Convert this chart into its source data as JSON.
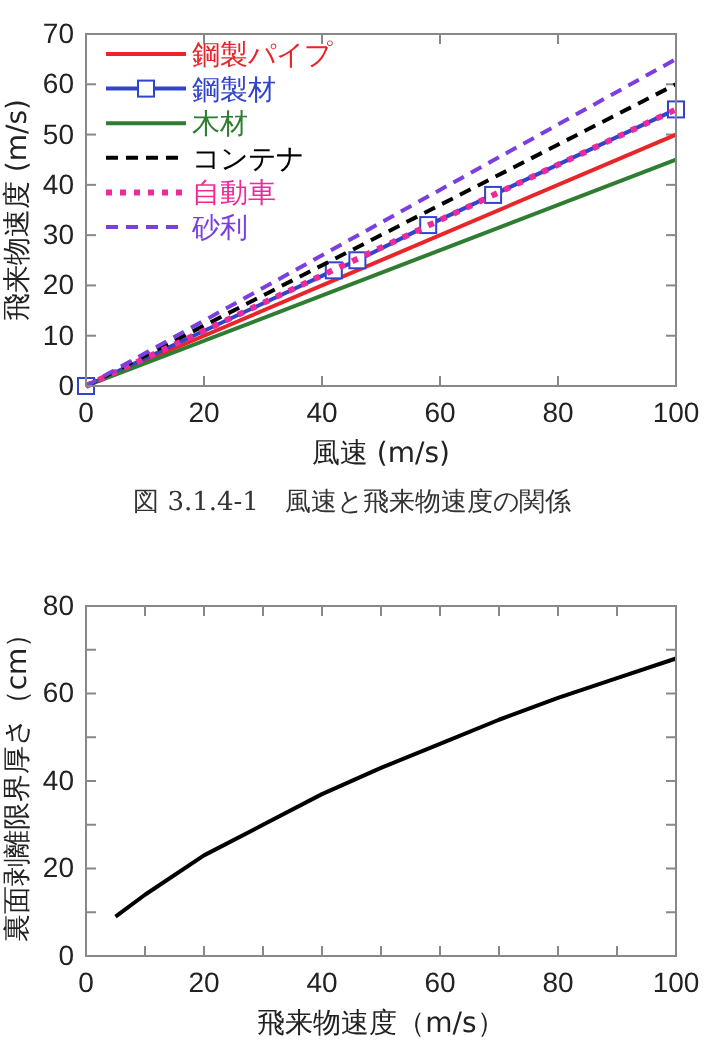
{
  "chart_data": [
    {
      "type": "line",
      "xlabel": "風速 (m/s)",
      "ylabel": "飛来物速度 (m/s)",
      "annotations": [
        "図 3.1.4-1　風速と飛来物速度の関係"
      ],
      "xlim": [
        0,
        100
      ],
      "ylim": [
        0,
        70
      ],
      "xticks": [
        0,
        20,
        40,
        60,
        80,
        100
      ],
      "yticks": [
        0,
        10,
        20,
        30,
        40,
        50,
        60,
        70
      ],
      "legend": "top left",
      "x": [
        0,
        100
      ],
      "series": [
        {
          "name": "鋼製パイプ",
          "color": "#e8262a",
          "values": [
            0,
            50
          ],
          "line_style": "solid"
        },
        {
          "name": "鋼製材",
          "color": "#3344cc",
          "x": [
            0,
            42,
            46,
            58,
            69,
            100
          ],
          "values": [
            0,
            23,
            25,
            32,
            38,
            55
          ],
          "line_style": "solid",
          "marker": "square"
        },
        {
          "name": "木材",
          "color": "#2e7d32",
          "values": [
            0,
            45
          ],
          "line_style": "solid"
        },
        {
          "name": "コンテナ",
          "color": "#000000",
          "values": [
            0,
            60
          ],
          "line_style": "dashed"
        },
        {
          "name": "自動車",
          "color": "#ee2a9a",
          "values": [
            0,
            55
          ],
          "line_style": "dotted"
        },
        {
          "name": "砂利",
          "color": "#7b3fe0",
          "values": [
            0,
            65
          ],
          "line_style": "dashed"
        }
      ]
    },
    {
      "type": "line",
      "xlabel": "飛来物速度（m/s）",
      "ylabel": "裏面剥離限界厚さ（cm）",
      "xlim": [
        0,
        100
      ],
      "ylim": [
        0,
        80
      ],
      "xticks": [
        0,
        {
          "value": 10,
          "label": null
        },
        20,
        {
          "value": 30,
          "label": null
        },
        40,
        {
          "value": 50,
          "label": null
        },
        60,
        {
          "value": 70,
          "label": null
        },
        80,
        {
          "value": 90,
          "label": null
        },
        100
      ],
      "yticks": [
        0,
        {
          "value": 10,
          "label": null
        },
        20,
        {
          "value": 30,
          "label": null
        },
        40,
        {
          "value": 50,
          "label": null
        },
        60,
        {
          "value": 70,
          "label": null
        },
        80
      ],
      "x": [
        5,
        10,
        20,
        30,
        40,
        50,
        60,
        70,
        80,
        90,
        100
      ],
      "series": [
        {
          "color": "#000000",
          "values": [
            9,
            14,
            23,
            30,
            37,
            43,
            48.5,
            54,
            59,
            63.5,
            68
          ],
          "line_style": "solid"
        }
      ]
    }
  ]
}
